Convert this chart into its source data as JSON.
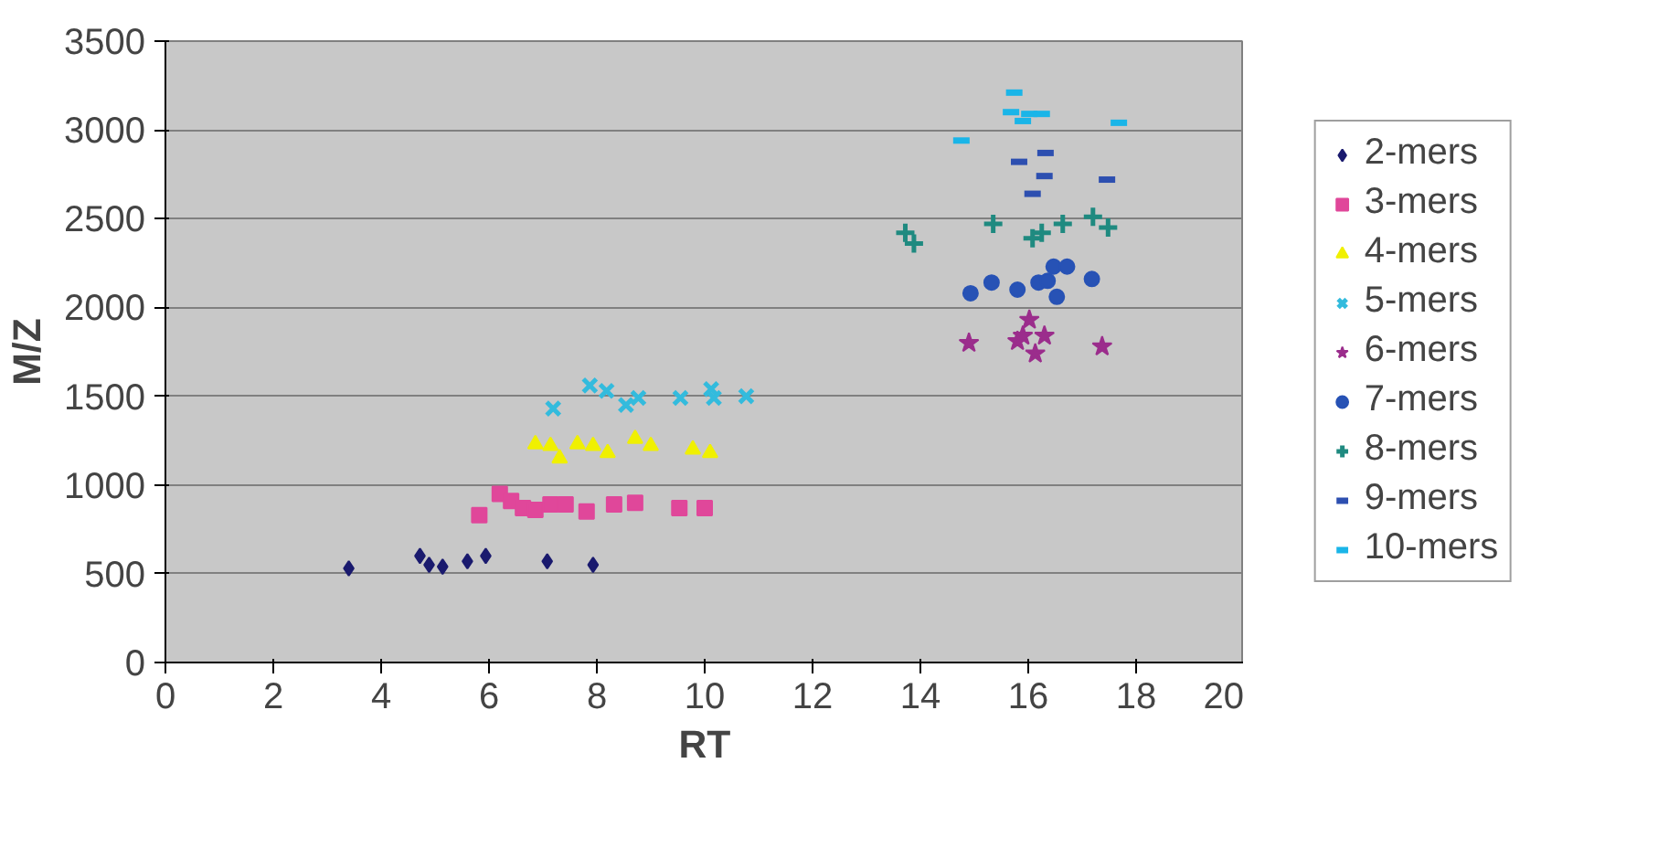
{
  "chart_data": {
    "type": "scatter",
    "xlabel": "RT",
    "ylabel": "M/Z",
    "xlim": [
      0,
      20
    ],
    "xticks": [
      0,
      2,
      4,
      6,
      8,
      10,
      12,
      14,
      16,
      18,
      20
    ],
    "ylim": [
      0,
      3500
    ],
    "yticks": [
      0,
      500,
      1000,
      1500,
      2000,
      2500,
      3000,
      3500
    ],
    "grid": "y",
    "legend": "right",
    "series": [
      {
        "name": "2-mers",
        "color": "#1a1a6e",
        "marker": "diamond",
        "x": [
          3.4,
          4.72,
          4.89,
          5.14,
          5.6,
          5.94,
          7.08,
          7.93
        ],
        "values": [
          530,
          600,
          550,
          540,
          570,
          600,
          570,
          550
        ]
      },
      {
        "name": "3-mers",
        "color": "#e0479a",
        "marker": "square",
        "x": [
          5.82,
          6.2,
          6.41,
          6.63,
          6.86,
          7.14,
          7.42,
          7.81,
          8.32,
          8.71,
          9.53,
          10.0
        ],
        "values": [
          830,
          950,
          910,
          870,
          860,
          890,
          890,
          850,
          890,
          900,
          870,
          870
        ]
      },
      {
        "name": "4-mers",
        "color": "#f0f000",
        "marker": "triangle",
        "x": [
          6.86,
          7.14,
          7.31,
          7.64,
          7.93,
          8.2,
          8.71,
          9.0,
          9.78,
          10.1
        ],
        "values": [
          1230,
          1220,
          1150,
          1230,
          1220,
          1180,
          1260,
          1220,
          1200,
          1180
        ]
      },
      {
        "name": "5-mers",
        "color": "#33bbdd",
        "marker": "x",
        "x": [
          7.19,
          7.87,
          8.18,
          8.54,
          8.77,
          9.55,
          10.12,
          10.17,
          10.77
        ],
        "values": [
          1430,
          1560,
          1530,
          1450,
          1490,
          1490,
          1540,
          1490,
          1500
        ]
      },
      {
        "name": "6-mers",
        "color": "#9b2d8c",
        "marker": "star",
        "x": [
          14.9,
          15.8,
          15.9,
          16.02,
          16.13,
          16.3,
          17.37
        ],
        "values": [
          1800,
          1810,
          1840,
          1930,
          1740,
          1840,
          1780
        ]
      },
      {
        "name": "7-mers",
        "color": "#2752b5",
        "marker": "circle",
        "x": [
          14.93,
          15.32,
          15.8,
          16.19,
          16.36,
          16.47,
          16.53,
          16.72,
          17.18
        ],
        "values": [
          2080,
          2140,
          2100,
          2140,
          2150,
          2230,
          2060,
          2230,
          2160
        ]
      },
      {
        "name": "8-mers",
        "color": "#1f8a80",
        "marker": "cross",
        "x": [
          13.72,
          13.88,
          15.35,
          16.08,
          16.25,
          16.64,
          17.2,
          17.48
        ],
        "values": [
          2420,
          2360,
          2470,
          2390,
          2420,
          2470,
          2510,
          2450
        ]
      },
      {
        "name": "9-mers",
        "color": "#2d4fb0",
        "x": [
          15.83,
          16.08,
          16.3,
          16.32,
          17.46
        ],
        "values": [
          2820,
          2640,
          2740,
          2870,
          2720
        ]
      },
      {
        "name": "10-mers",
        "color": "#1ab5e8",
        "x": [
          14.76,
          15.68,
          15.74,
          15.9,
          16.02,
          16.25,
          17.68
        ],
        "values": [
          2940,
          3100,
          3210,
          3050,
          3090,
          3090,
          3040
        ]
      }
    ]
  }
}
